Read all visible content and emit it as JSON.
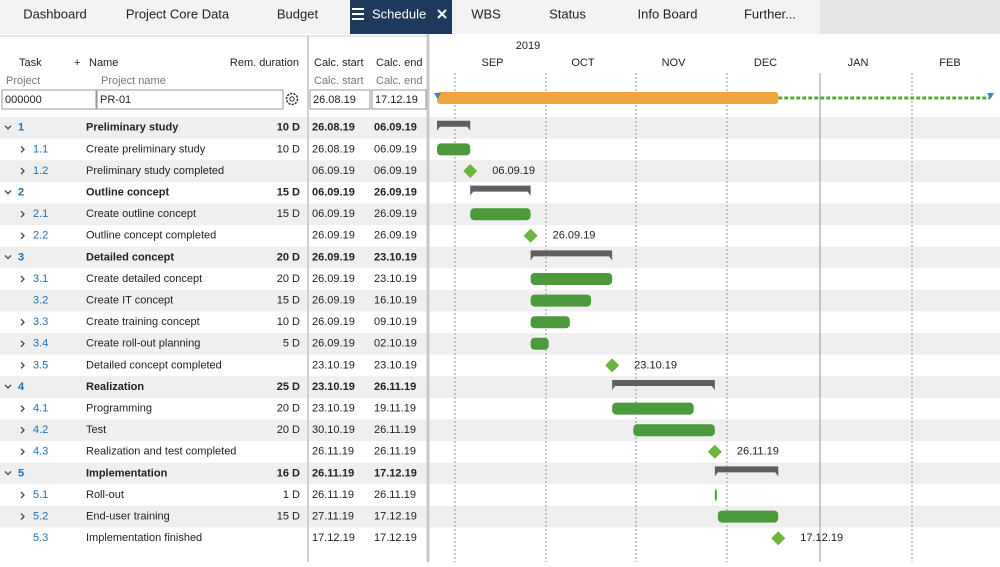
{
  "tabs": [
    "Dashboard",
    "Project Core Data",
    "Budget",
    "Schedule",
    "WBS",
    "Status",
    "Info Board",
    "Further..."
  ],
  "active_tab": 3,
  "header": {
    "task": "Task",
    "name": "Name",
    "rem_duration": "Rem. duration",
    "calc_start": "Calc. start",
    "calc_end": "Calc. end"
  },
  "subheader": {
    "project": "Project",
    "project_name": "Project name",
    "calc_start": "Calc. start",
    "calc_end": "Calc. end"
  },
  "project": {
    "id": "000000",
    "name": "PR-01",
    "start": "26.08.19",
    "end": "17.12.19"
  },
  "timeline": {
    "year": "2019",
    "months": [
      "SEP",
      "OCT",
      "NOV",
      "DEC",
      "JAN",
      "FEB"
    ]
  },
  "rows": [
    {
      "task": "1",
      "name": "Preliminary study",
      "rem": "10 D",
      "start": "26.08.19",
      "end": "06.09.19",
      "kind": "summary",
      "expandable": true
    },
    {
      "task": "1.1",
      "name": "Create preliminary study",
      "rem": "10 D",
      "start": "26.08.19",
      "end": "06.09.19",
      "kind": "task",
      "expandable": true
    },
    {
      "task": "1.2",
      "name": "Preliminary study completed",
      "start": "06.09.19",
      "end": "06.09.19",
      "kind": "milestone",
      "expandable": true
    },
    {
      "task": "2",
      "name": "Outline concept",
      "rem": "15 D",
      "start": "06.09.19",
      "end": "26.09.19",
      "kind": "summary",
      "expandable": true
    },
    {
      "task": "2.1",
      "name": "Create outline concept",
      "rem": "15 D",
      "start": "06.09.19",
      "end": "26.09.19",
      "kind": "task",
      "expandable": true
    },
    {
      "task": "2.2",
      "name": "Outline concept completed",
      "start": "26.09.19",
      "end": "26.09.19",
      "kind": "milestone",
      "expandable": true
    },
    {
      "task": "3",
      "name": "Detailed concept",
      "rem": "20 D",
      "start": "26.09.19",
      "end": "23.10.19",
      "kind": "summary",
      "expandable": true
    },
    {
      "task": "3.1",
      "name": "Create detailed concept",
      "rem": "20 D",
      "start": "26.09.19",
      "end": "23.10.19",
      "kind": "task",
      "expandable": true
    },
    {
      "task": "3.2",
      "name": "Create IT concept",
      "rem": "15 D",
      "start": "26.09.19",
      "end": "16.10.19",
      "kind": "task",
      "expandable": false
    },
    {
      "task": "3.3",
      "name": "Create training concept",
      "rem": "10 D",
      "start": "26.09.19",
      "end": "09.10.19",
      "kind": "task",
      "expandable": true
    },
    {
      "task": "3.4",
      "name": "Create roll-out planning",
      "rem": "5 D",
      "start": "26.09.19",
      "end": "02.10.19",
      "kind": "task",
      "expandable": true
    },
    {
      "task": "3.5",
      "name": "Detailed concept completed",
      "start": "23.10.19",
      "end": "23.10.19",
      "kind": "milestone",
      "expandable": true
    },
    {
      "task": "4",
      "name": "Realization",
      "rem": "25 D",
      "start": "23.10.19",
      "end": "26.11.19",
      "kind": "summary",
      "expandable": true
    },
    {
      "task": "4.1",
      "name": "Programming",
      "rem": "20 D",
      "start": "23.10.19",
      "end": "19.11.19",
      "kind": "task",
      "expandable": true
    },
    {
      "task": "4.2",
      "name": "Test",
      "rem": "20 D",
      "start": "30.10.19",
      "end": "26.11.19",
      "kind": "task",
      "expandable": true
    },
    {
      "task": "4.3",
      "name": "Realization and test completed",
      "start": "26.11.19",
      "end": "26.11.19",
      "kind": "milestone",
      "expandable": true
    },
    {
      "task": "5",
      "name": "Implementation",
      "rem": "16 D",
      "start": "26.11.19",
      "end": "17.12.19",
      "kind": "summary",
      "expandable": true
    },
    {
      "task": "5.1",
      "name": "Roll-out",
      "rem": "1 D",
      "start": "26.11.19",
      "end": "26.11.19",
      "kind": "task",
      "expandable": true
    },
    {
      "task": "5.2",
      "name": "End-user training",
      "rem": "15 D",
      "start": "27.11.19",
      "end": "17.12.19",
      "kind": "task",
      "expandable": true
    },
    {
      "task": "5.3",
      "name": "Implementation finished",
      "start": "17.12.19",
      "end": "17.12.19",
      "kind": "milestone",
      "expandable": false
    }
  ]
}
